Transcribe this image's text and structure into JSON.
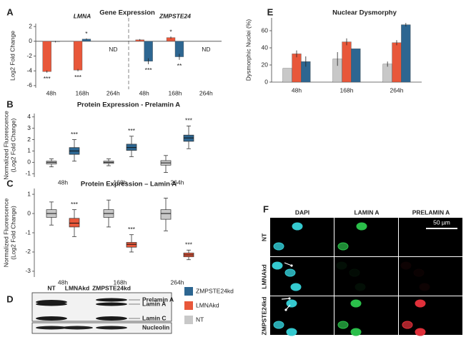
{
  "chart_data": [
    {
      "type": "bar",
      "panel": "A",
      "title": "Gene Expression",
      "ylabel": [
        "Log2 Fold Change"
      ],
      "groups": [
        "LMNA",
        "ZMPSTE24"
      ],
      "categories": [
        "48h",
        "168h",
        "264h",
        "48h",
        "168h",
        "264h"
      ],
      "missing_label": "ND",
      "ylim": [
        -6.3,
        2.4
      ],
      "yticks": [
        2,
        0,
        -2,
        -4,
        -6
      ],
      "grid": false,
      "series": [
        {
          "name": "LMNAkd",
          "color": "#e8573a",
          "values": [
            -4.1,
            -3.9,
            null,
            0.2,
            0.5,
            null
          ],
          "errors": [
            0.15,
            0.15,
            null,
            0.1,
            0.15,
            null
          ],
          "significance": [
            "***",
            "***",
            null,
            null,
            "*",
            null
          ]
        },
        {
          "name": "ZMPSTE24kd",
          "color": "#2d6691",
          "values": [
            -0.05,
            0.3,
            null,
            -2.7,
            -2.1,
            null
          ],
          "errors": [
            0.1,
            0.1,
            null,
            0.4,
            0.4,
            null
          ],
          "significance": [
            null,
            "*",
            null,
            "***",
            "**",
            null
          ]
        }
      ]
    },
    {
      "type": "box",
      "panel": "B",
      "title": "Protein Expression - Prelamin A",
      "ylabel": [
        "Normalized Fluorescence",
        "(Log2 Fold Change)"
      ],
      "categories": [
        "48h",
        "168h",
        "264h"
      ],
      "ylim": [
        -1.3,
        4.3
      ],
      "yticks": [
        4,
        3,
        2,
        1,
        0,
        -1
      ],
      "grid": false,
      "series": [
        {
          "name": "NT",
          "color": "#c8c8c8",
          "boxes": [
            [
              -0.4,
              -0.15,
              0,
              0.1,
              0.3
            ],
            [
              -0.3,
              -0.1,
              0,
              0.1,
              0.3
            ],
            [
              -0.9,
              -0.25,
              -0.05,
              0.15,
              0.6
            ]
          ],
          "significance": [
            null,
            null,
            null
          ]
        },
        {
          "name": "ZMPSTE24kd",
          "color": "#2d6691",
          "boxes": [
            [
              0.1,
              0.7,
              1.0,
              1.3,
              2.0
            ],
            [
              0.5,
              1.05,
              1.3,
              1.6,
              2.3
            ],
            [
              1.2,
              1.85,
              2.15,
              2.4,
              3.2
            ]
          ],
          "significance": [
            "***",
            "***",
            "***"
          ]
        }
      ]
    },
    {
      "type": "box",
      "panel": "C",
      "title": "Protein Expression – Lamin A",
      "ylabel": [
        "Normalized Fluorescence",
        "(Log2 Fold Change)"
      ],
      "categories": [
        "48h",
        "168h",
        "264h"
      ],
      "ylim": [
        -3.3,
        1.3
      ],
      "yticks": [
        1,
        0,
        -1,
        -2,
        -3
      ],
      "grid": false,
      "series": [
        {
          "name": "NT",
          "color": "#c8c8c8",
          "boxes": [
            [
              -0.6,
              -0.2,
              0,
              0.2,
              0.6
            ],
            [
              -0.7,
              -0.2,
              0,
              0.2,
              0.7
            ],
            [
              -0.9,
              -0.3,
              0,
              0.2,
              0.8
            ]
          ],
          "significance": [
            null,
            null,
            null
          ]
        },
        {
          "name": "LMNAkd",
          "color": "#e8573a",
          "boxes": [
            [
              -1.2,
              -0.7,
              -0.5,
              -0.25,
              0.2
            ],
            [
              -2.0,
              -1.75,
              -1.6,
              -1.5,
              -1.1
            ],
            [
              -2.4,
              -2.25,
              -2.15,
              -2.05,
              -1.9
            ]
          ],
          "significance": [
            "***",
            "***",
            "***"
          ]
        }
      ]
    },
    {
      "type": "bar",
      "panel": "E",
      "title": "Nuclear Dysmorphy",
      "ylabel": [
        "Dysmorphic Nuclei (%)"
      ],
      "categories": [
        "48h",
        "168h",
        "264h"
      ],
      "ylim": [
        0,
        75
      ],
      "yticks": [
        0,
        20,
        40,
        60
      ],
      "grid": false,
      "series": [
        {
          "name": "NT",
          "color": "#c8c8c8",
          "values": [
            16,
            27,
            21
          ],
          "errors": [
            0,
            8,
            3
          ]
        },
        {
          "name": "LMNAkd",
          "color": "#e8573a",
          "values": [
            33,
            47,
            46
          ],
          "errors": [
            4,
            4,
            3
          ]
        },
        {
          "name": "ZMPSTE24kd",
          "color": "#2d6691",
          "values": [
            24,
            39,
            67
          ],
          "errors": [
            6,
            0,
            2
          ]
        }
      ]
    }
  ],
  "blot": {
    "panel": "D",
    "lanes": [
      "NT",
      "LMNAkd",
      "ZMPSTE24kd"
    ],
    "bands": [
      "Prelamin A",
      "Lamin A",
      "Lamin C"
    ],
    "loading_control": "Nucleolin"
  },
  "legend": [
    {
      "name": "ZMPSTE24kd",
      "color": "#2d6691"
    },
    {
      "name": "LMNAkd",
      "color": "#e8573a"
    },
    {
      "name": "NT",
      "color": "#c8c8c8"
    }
  ],
  "microscopy": {
    "panel": "F",
    "columns": [
      "DAPI",
      "LAMIN A",
      "PRELAMIN A"
    ],
    "rows": [
      "NT",
      "LMNAkd",
      "ZMPSTE24kd"
    ],
    "scale_bar": "50 µm"
  }
}
